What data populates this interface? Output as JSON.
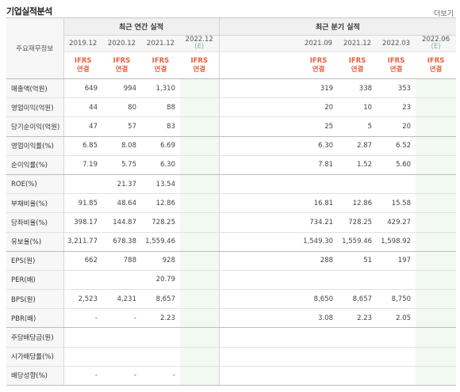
{
  "header": {
    "title": "기업실적분석",
    "more_label": "더보기"
  },
  "table": {
    "label_header": "주요재무정보",
    "annual_header": "최근 연간 실적",
    "quarter_header": "최근 분기 실적",
    "annual_periods": [
      "2019.12",
      "2020.12",
      "2021.12",
      "2022.12"
    ],
    "annual_est": [
      "",
      "",
      "",
      "(E)"
    ],
    "quarter_periods": [
      "2021.09",
      "2021.12",
      "2022.03",
      "2022.06"
    ],
    "quarter_est": [
      "",
      "",
      "",
      "(E)"
    ],
    "annual_tags": [
      [
        "IFRS",
        "연결"
      ],
      [
        "IFRS",
        "연결"
      ],
      [
        "IFRS",
        "연결"
      ],
      [
        "IFRS",
        "연결"
      ]
    ],
    "quarter_tags": [
      [
        "IFRS",
        "연결"
      ],
      [
        "IFRS",
        "연결"
      ],
      [
        "IFRS",
        "연결"
      ],
      [
        "IFRS",
        "연결"
      ]
    ],
    "rows": [
      {
        "label": "매출액(억원)",
        "a": [
          "649",
          "994",
          "1,310",
          ""
        ],
        "q": [
          "319",
          "338",
          "353",
          ""
        ]
      },
      {
        "label": "영업이익(억원)",
        "a": [
          "44",
          "80",
          "88",
          ""
        ],
        "q": [
          "20",
          "10",
          "23",
          ""
        ]
      },
      {
        "label": "당기순이익(억원)",
        "a": [
          "47",
          "57",
          "83",
          ""
        ],
        "q": [
          "25",
          "5",
          "20",
          ""
        ]
      },
      {
        "label": "영업이익률(%)",
        "a": [
          "6.85",
          "8.08",
          "6.69",
          ""
        ],
        "q": [
          "6.30",
          "2.87",
          "6.52",
          ""
        ]
      },
      {
        "label": "순이익률(%)",
        "a": [
          "7.19",
          "5.75",
          "6.30",
          ""
        ],
        "q": [
          "7.81",
          "1.52",
          "5.60",
          ""
        ]
      },
      {
        "label": "ROE(%)",
        "a": [
          "",
          "21.37",
          "13.54",
          ""
        ],
        "q": [
          "",
          "",
          "",
          ""
        ]
      },
      {
        "label": "부채비율(%)",
        "a": [
          "91.85",
          "48.64",
          "12.86",
          ""
        ],
        "q": [
          "16.81",
          "12.86",
          "15.58",
          ""
        ]
      },
      {
        "label": "당좌비율(%)",
        "a": [
          "398.17",
          "144.87",
          "728.25",
          ""
        ],
        "q": [
          "734.21",
          "728.25",
          "429.27",
          ""
        ]
      },
      {
        "label": "유보율(%)",
        "a": [
          "3,211.77",
          "678.38",
          "1,559.46",
          ""
        ],
        "q": [
          "1,549.30",
          "1,559.46",
          "1,598.92",
          ""
        ]
      },
      {
        "label": "EPS(원)",
        "a": [
          "662",
          "788",
          "928",
          ""
        ],
        "q": [
          "288",
          "51",
          "197",
          ""
        ]
      },
      {
        "label": "PER(배)",
        "a": [
          "",
          "",
          "20.79",
          ""
        ],
        "q": [
          "",
          "",
          "",
          ""
        ]
      },
      {
        "label": "BPS(원)",
        "a": [
          "2,523",
          "4,231",
          "8,657",
          ""
        ],
        "q": [
          "8,650",
          "8,657",
          "8,750",
          ""
        ]
      },
      {
        "label": "PBR(배)",
        "a": [
          "-",
          "-",
          "2.23",
          ""
        ],
        "q": [
          "3.08",
          "2.23",
          "2.05",
          ""
        ]
      },
      {
        "label": "주당배당금(원)",
        "a": [
          "",
          "",
          "",
          ""
        ],
        "q": [
          "",
          "",
          "",
          ""
        ]
      },
      {
        "label": "시가배당률(%)",
        "a": [
          "",
          "",
          "",
          ""
        ],
        "q": [
          "",
          "",
          "",
          ""
        ]
      },
      {
        "label": "배당성향(%)",
        "a": [
          "-",
          "-",
          "-",
          ""
        ],
        "q": [
          "",
          "",
          "",
          ""
        ]
      }
    ]
  }
}
